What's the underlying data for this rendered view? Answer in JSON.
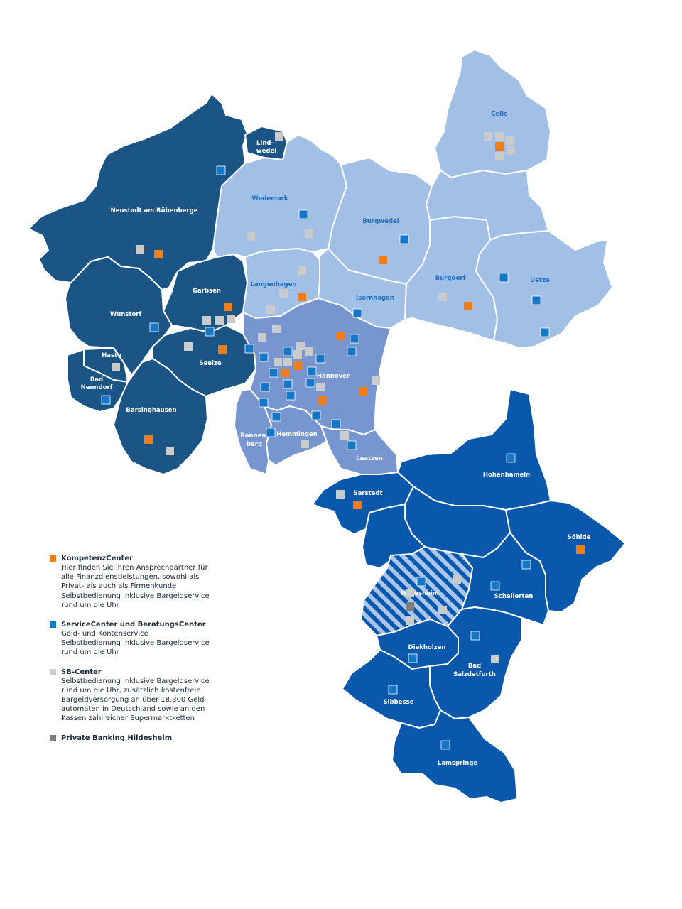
{
  "colors": {
    "dark": "#1b5585",
    "light": "#a2bfe5",
    "mid": "#7795cf",
    "hild": "#0a58ac",
    "orange": "#ee7d1a",
    "blue": "#1577c6",
    "gray": "#c9cbcd",
    "darkgray": "#7a7c80",
    "white": "#ffffff"
  },
  "labels": {
    "lindwedel": "Lind-",
    "lindwedel2": "wedel",
    "neustadt": "Neustadt am Rübenberge",
    "wedemark": "Wedemark",
    "celle": "Celle",
    "burgwedel": "Burgwedel",
    "garbsen": "Garbsen",
    "langenhagen": "Langenhagen",
    "wunstorf": "Wunstorf",
    "isernhagen": "Isernhagen",
    "burgdorf": "Burgdorf",
    "uetze": "Uetze",
    "haste": "Haste",
    "badnenndorf": "Bad",
    "badnenndorf2": "Nenndorf",
    "seelze": "Seelze",
    "hannover": "Hannover",
    "barsinghausen": "Barsinghausen",
    "ronnenberg": "Ronnen-",
    "ronnenberg2": "berg",
    "hemmingen": "Hemmingen",
    "laatzen": "Laatzen",
    "sarstedt": "Sarstedt",
    "hohenhameln": "Hohenhameln",
    "soehlde": "Söhlde",
    "schellerten": "Schellerten",
    "hildesheim": "Hildesheim",
    "diekholzen": "Diekholzen",
    "badsalzdetfurth": "Bad",
    "badsalzdetfurth2": "Salzdetfurth",
    "sibbesse": "Sibbesse",
    "lamspringe": "Lamspringe"
  },
  "legend": [
    {
      "title": "KompetenzCenter",
      "text": "Hier finden Sie Ihren Ansprechpartner für\nalle Finanzdienstleistungen, sowohl als\nPrivat- als auch als Firmenkunde\nSelbstbedienung inklusive Bargeldservice\nrund um die Uhr",
      "color": "#ee7d1a"
    },
    {
      "title": "ServiceCenter und BeratungsCenter",
      "text": "Geld- und Kontenservice\nSelbstbedienung inklusive Bargeldservice\nrund um die Uhr",
      "color": "#1577c6"
    },
    {
      "title": "SB-Center",
      "text": "Selbstbedienung inklusive Bargeldservice\nrund um die Uhr, zusätzlich kostenfreie\nBargeldversorgung an über 18.300 Geld-\nautomaten in Deutschland sowie an den\nKassen zahlreicher Supermarktketten",
      "color": "#c9cbcd"
    },
    {
      "title": "Private Banking Hildesheim",
      "text": "",
      "color": "#7a7c80"
    }
  ]
}
